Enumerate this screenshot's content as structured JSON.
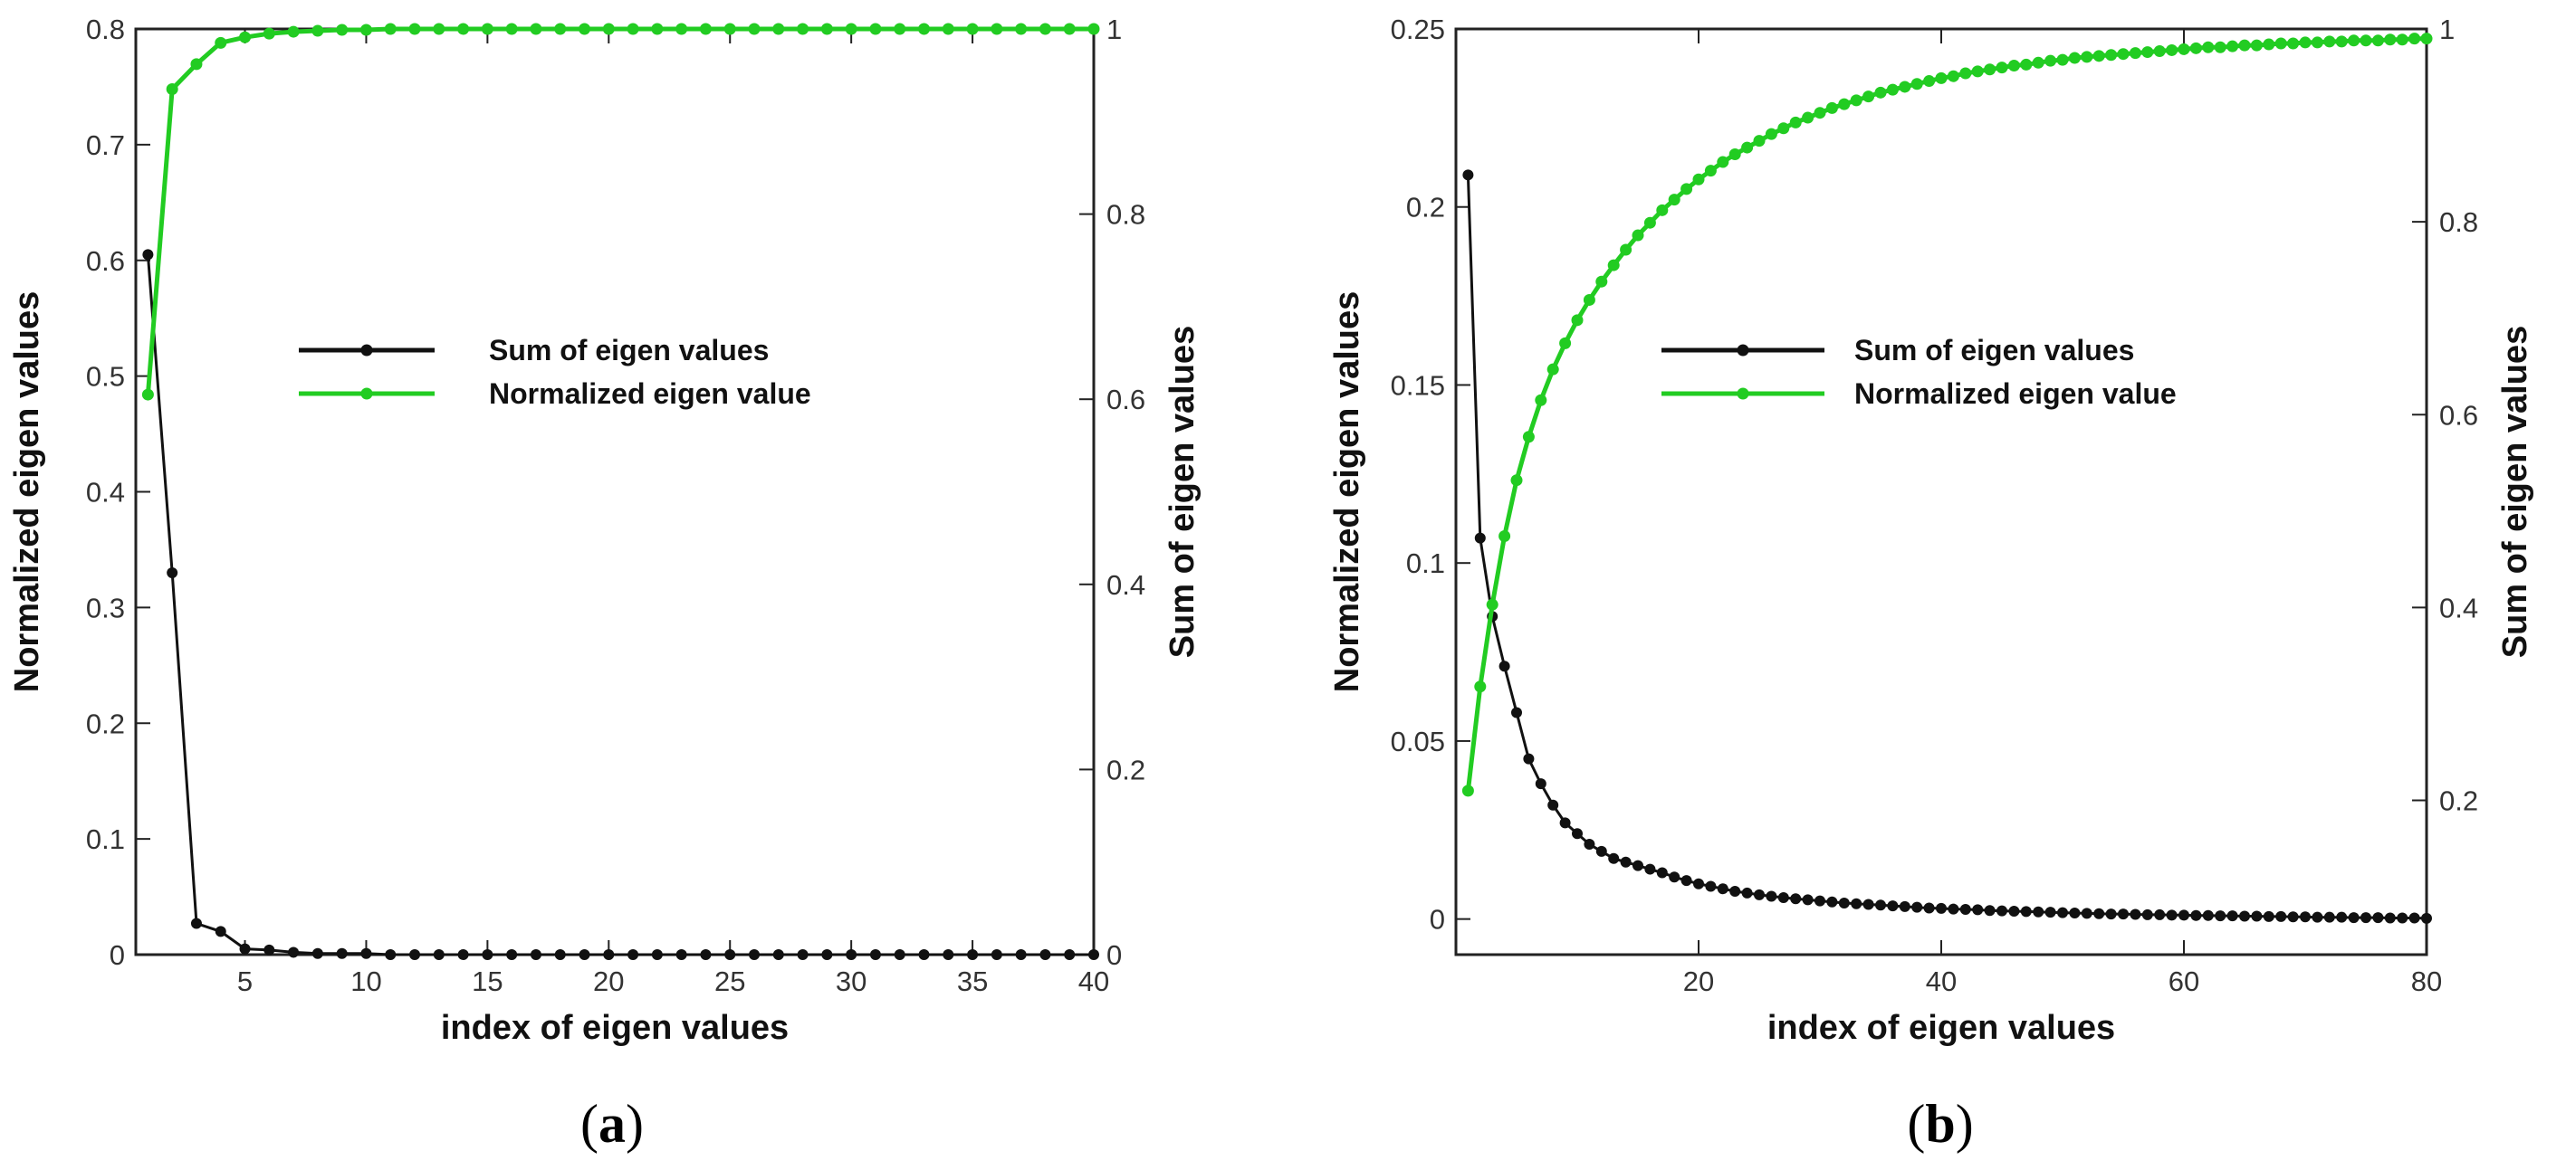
{
  "chart_data": [
    {
      "type": "line",
      "panel": "(a)",
      "panel_letter": "a",
      "xlabel": "index of eigen values",
      "ylabel_left": "Normalized eigen values",
      "ylabel_right": "Sum of eigen values",
      "xlim": [
        0.5,
        40
      ],
      "ylim_left": [
        0,
        0.8
      ],
      "ylim_right": [
        0,
        1
      ],
      "x_ticks": [
        5,
        10,
        15,
        20,
        25,
        30,
        35,
        40
      ],
      "y_left_ticks": [
        0,
        0.1,
        0.2,
        0.3,
        0.4,
        0.5,
        0.6,
        0.7,
        0.8
      ],
      "y_right_ticks": [
        0,
        0.2,
        0.4,
        0.6,
        0.8,
        1
      ],
      "legend_position": "center",
      "series": [
        {
          "name": "Sum of eigen values",
          "color": "#111111",
          "axis": "left",
          "x": [
            1,
            2,
            3,
            4,
            5,
            6,
            7,
            8,
            9,
            10,
            11,
            12,
            13,
            14,
            15,
            16,
            17,
            18,
            19,
            20,
            21,
            22,
            23,
            24,
            25,
            26,
            27,
            28,
            29,
            30,
            31,
            32,
            33,
            34,
            35,
            36,
            37,
            38,
            39,
            40
          ],
          "values": [
            0.605,
            0.33,
            0.027,
            0.02,
            0.005,
            0.004,
            0.002,
            0.001,
            0.001,
            0.001,
            0,
            0,
            0,
            0,
            0,
            0,
            0,
            0,
            0,
            0,
            0,
            0,
            0,
            0,
            0,
            0,
            0,
            0,
            0,
            0,
            0,
            0,
            0,
            0,
            0,
            0,
            0,
            0,
            0,
            0
          ]
        },
        {
          "name": "Normalized eigen value",
          "color": "#22cc22",
          "axis": "right",
          "x": [
            1,
            2,
            3,
            4,
            5,
            6,
            7,
            8,
            9,
            10,
            11,
            12,
            13,
            14,
            15,
            16,
            17,
            18,
            19,
            20,
            21,
            22,
            23,
            24,
            25,
            26,
            27,
            28,
            29,
            30,
            31,
            32,
            33,
            34,
            35,
            36,
            37,
            38,
            39,
            40
          ],
          "values": [
            0.605,
            0.935,
            0.962,
            0.985,
            0.991,
            0.995,
            0.997,
            0.998,
            0.999,
            0.999,
            1,
            1,
            1,
            1,
            1,
            1,
            1,
            1,
            1,
            1,
            1,
            1,
            1,
            1,
            1,
            1,
            1,
            1,
            1,
            1,
            1,
            1,
            1,
            1,
            1,
            1,
            1,
            1,
            1,
            1
          ]
        }
      ]
    },
    {
      "type": "line",
      "panel": "(b)",
      "panel_letter": "b",
      "xlabel": "index of eigen values",
      "ylabel_left": "Normalized eigen values",
      "ylabel_right": "Sum of eigen values",
      "xlim": [
        0,
        80
      ],
      "ylim_left": [
        -0.01,
        0.25
      ],
      "ylim_right": [
        0.04,
        1
      ],
      "x_ticks": [
        20,
        40,
        60,
        80
      ],
      "y_left_ticks": [
        0,
        0.05,
        0.1,
        0.15,
        0.2,
        0.25
      ],
      "y_right_ticks": [
        0.2,
        0.4,
        0.6,
        0.8,
        1
      ],
      "legend_position": "center",
      "series": [
        {
          "name": "Sum of eigen values",
          "color": "#111111",
          "axis": "left",
          "x": [
            1,
            2,
            3,
            4,
            5,
            6,
            7,
            8,
            9,
            10,
            11,
            12,
            13,
            14,
            15,
            16,
            17,
            18,
            19,
            20,
            21,
            22,
            23,
            24,
            25,
            26,
            27,
            28,
            29,
            30,
            31,
            32,
            33,
            34,
            35,
            36,
            37,
            38,
            39,
            40,
            41,
            42,
            43,
            44,
            45,
            46,
            47,
            48,
            49,
            50,
            51,
            52,
            53,
            54,
            55,
            56,
            57,
            58,
            59,
            60,
            61,
            62,
            63,
            64,
            65,
            66,
            67,
            68,
            69,
            70,
            71,
            72,
            73,
            74,
            75,
            76,
            77,
            78,
            79,
            80
          ],
          "values": [
            0.209,
            0.107,
            0.085,
            0.071,
            0.058,
            0.045,
            0.038,
            0.032,
            0.027,
            0.024,
            0.021,
            0.019,
            0.017,
            0.016,
            0.015,
            0.014,
            0.013,
            0.0118,
            0.0108,
            0.0099,
            0.0092,
            0.0085,
            0.0078,
            0.0073,
            0.0068,
            0.0064,
            0.006,
            0.0057,
            0.0054,
            0.0051,
            0.0048,
            0.0045,
            0.0043,
            0.0041,
            0.0039,
            0.0037,
            0.0035,
            0.0033,
            0.0031,
            0.003,
            0.0028,
            0.0027,
            0.0026,
            0.0024,
            0.0023,
            0.0022,
            0.0021,
            0.002,
            0.0019,
            0.0018,
            0.0017,
            0.0016,
            0.0015,
            0.0014,
            0.0014,
            0.0013,
            0.0012,
            0.0012,
            0.0011,
            0.0011,
            0.001,
            0.001,
            0.0009,
            0.0009,
            0.0008,
            0.0008,
            0.0007,
            0.0007,
            0.0006,
            0.0006,
            0.0005,
            0.0005,
            0.0005,
            0.0004,
            0.0004,
            0.0004,
            0.0003,
            0.0003,
            0.0003,
            0.0002
          ]
        },
        {
          "name": "Normalized eigen value",
          "color": "#22cc22",
          "axis": "right",
          "x": [
            1,
            2,
            3,
            4,
            5,
            6,
            7,
            8,
            9,
            10,
            11,
            12,
            13,
            14,
            15,
            16,
            17,
            18,
            19,
            20,
            21,
            22,
            23,
            24,
            25,
            26,
            27,
            28,
            29,
            30,
            31,
            32,
            33,
            34,
            35,
            36,
            37,
            38,
            39,
            40,
            41,
            42,
            43,
            44,
            45,
            46,
            47,
            48,
            49,
            50,
            51,
            52,
            53,
            54,
            55,
            56,
            57,
            58,
            59,
            60,
            61,
            62,
            63,
            64,
            65,
            66,
            67,
            68,
            69,
            70,
            71,
            72,
            73,
            74,
            75,
            76,
            77,
            78,
            79,
            80
          ],
          "values": [
            0.21,
            0.318,
            0.403,
            0.474,
            0.532,
            0.577,
            0.615,
            0.647,
            0.674,
            0.698,
            0.719,
            0.738,
            0.755,
            0.771,
            0.786,
            0.799,
            0.812,
            0.823,
            0.834,
            0.844,
            0.853,
            0.862,
            0.87,
            0.877,
            0.884,
            0.891,
            0.897,
            0.903,
            0.908,
            0.913,
            0.918,
            0.922,
            0.926,
            0.93,
            0.934,
            0.937,
            0.94,
            0.943,
            0.946,
            0.949,
            0.951,
            0.954,
            0.956,
            0.958,
            0.96,
            0.962,
            0.963,
            0.965,
            0.967,
            0.968,
            0.97,
            0.971,
            0.972,
            0.973,
            0.974,
            0.975,
            0.976,
            0.977,
            0.978,
            0.979,
            0.98,
            0.981,
            0.981,
            0.982,
            0.983,
            0.983,
            0.984,
            0.985,
            0.985,
            0.986,
            0.986,
            0.987,
            0.987,
            0.988,
            0.988,
            0.988,
            0.989,
            0.989,
            0.99,
            0.99
          ]
        }
      ]
    }
  ]
}
